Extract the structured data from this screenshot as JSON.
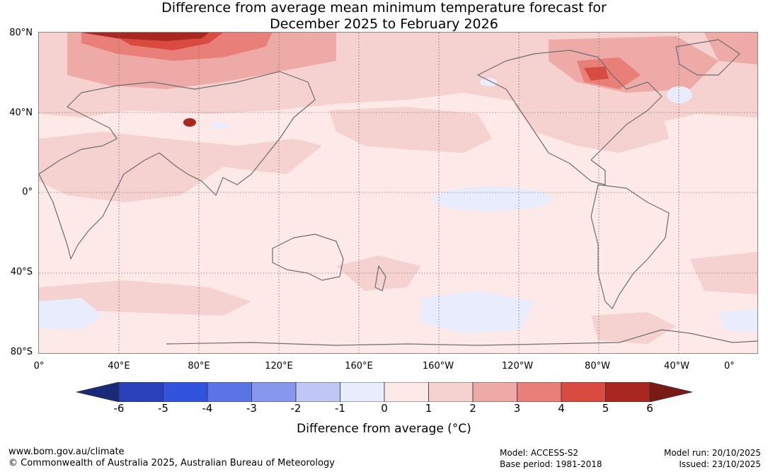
{
  "title": {
    "line1": "Difference from average mean minimum temperature forecast for",
    "line2": "December 2025 to February 2026"
  },
  "map": {
    "lat_labels": [
      "80°N",
      "40°N",
      "0°",
      "40°S",
      "80°S"
    ],
    "lon_labels": [
      "0°",
      "40°E",
      "80°E",
      "120°E",
      "160°E",
      "160°W",
      "120°W",
      "80°W",
      "40°W",
      "0°"
    ]
  },
  "colorbar": {
    "ticks": [
      "-6",
      "-5",
      "-4",
      "-3",
      "-2",
      "-1",
      "0",
      "1",
      "2",
      "3",
      "4",
      "5",
      "6"
    ],
    "colors": [
      "#1a2a78",
      "#2940b8",
      "#3252e0",
      "#5a74e6",
      "#8797ee",
      "#bfc8f4",
      "#e8ecfc",
      "#fde9e7",
      "#f5d1cf",
      "#eeaaa7",
      "#e87f79",
      "#d94a40",
      "#a8281f",
      "#7a1a14"
    ],
    "label": "Difference from average (°C)"
  },
  "footer": {
    "site": "www.bom.gov.au/climate",
    "copyright": "© Commonwealth of Australia 2025, Australian Bureau of Meteorology",
    "model": "Model: ACCESS-S2",
    "base_period": "Base period: 1981-2018",
    "model_run": "Model run: 20/10/2025",
    "issued": "Issued: 23/10/2025"
  }
}
